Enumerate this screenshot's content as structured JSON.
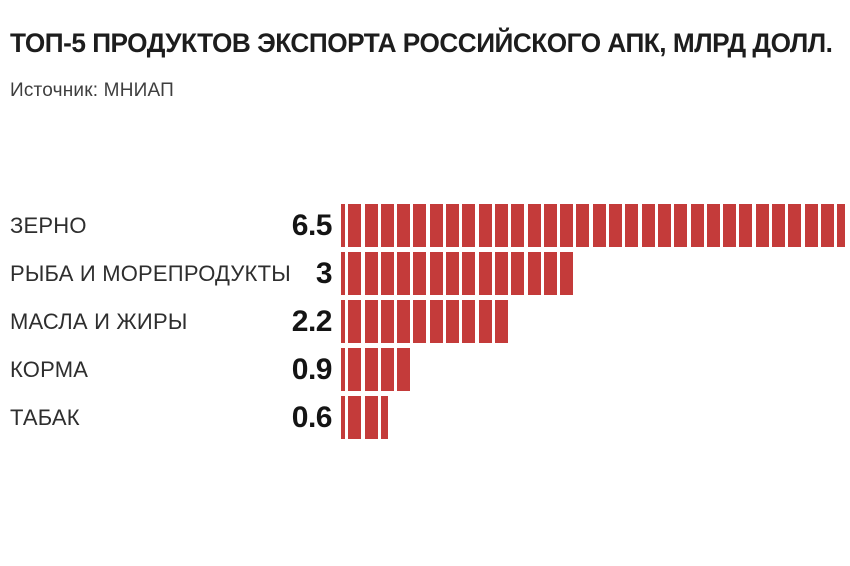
{
  "header": {
    "title": "ТОП-5 ПРОДУКТОВ ЭКСПОРТА РОССИЙСКОГО АПК, МЛРД ДОЛЛ.",
    "source": "Источник: МНИАП"
  },
  "colors": {
    "bar": "#c43b3a",
    "title_text": "#1d1d1d",
    "source_text": "#3e3e3e",
    "label_text": "#2e2e2e",
    "value_text": "#141414",
    "background": "#ffffff"
  },
  "chart_data": {
    "type": "bar",
    "orientation": "horizontal",
    "bar_style": "segmented-stripes",
    "title": "ТОП-5 ПРОДУКТОВ ЭКСПОРТА РОССИЙСКОГО АПК, МЛРД ДОЛЛ.",
    "source": "Источник: МНИАП",
    "unit": "млрд долл.",
    "categories": [
      "ЗЕРНО",
      "РЫБА И МОРЕПРОДУКТЫ",
      "МАСЛА И ЖИРЫ",
      "КОРМА",
      "ТАБАК"
    ],
    "values": [
      6.5,
      3,
      2.2,
      0.9,
      0.6
    ],
    "value_labels": [
      "6.5",
      "3",
      "2.2",
      "0.9",
      "0.6"
    ],
    "xlim": [
      0,
      6.5
    ],
    "grid": false,
    "legend": false,
    "value_label_position": "left-of-bar"
  }
}
